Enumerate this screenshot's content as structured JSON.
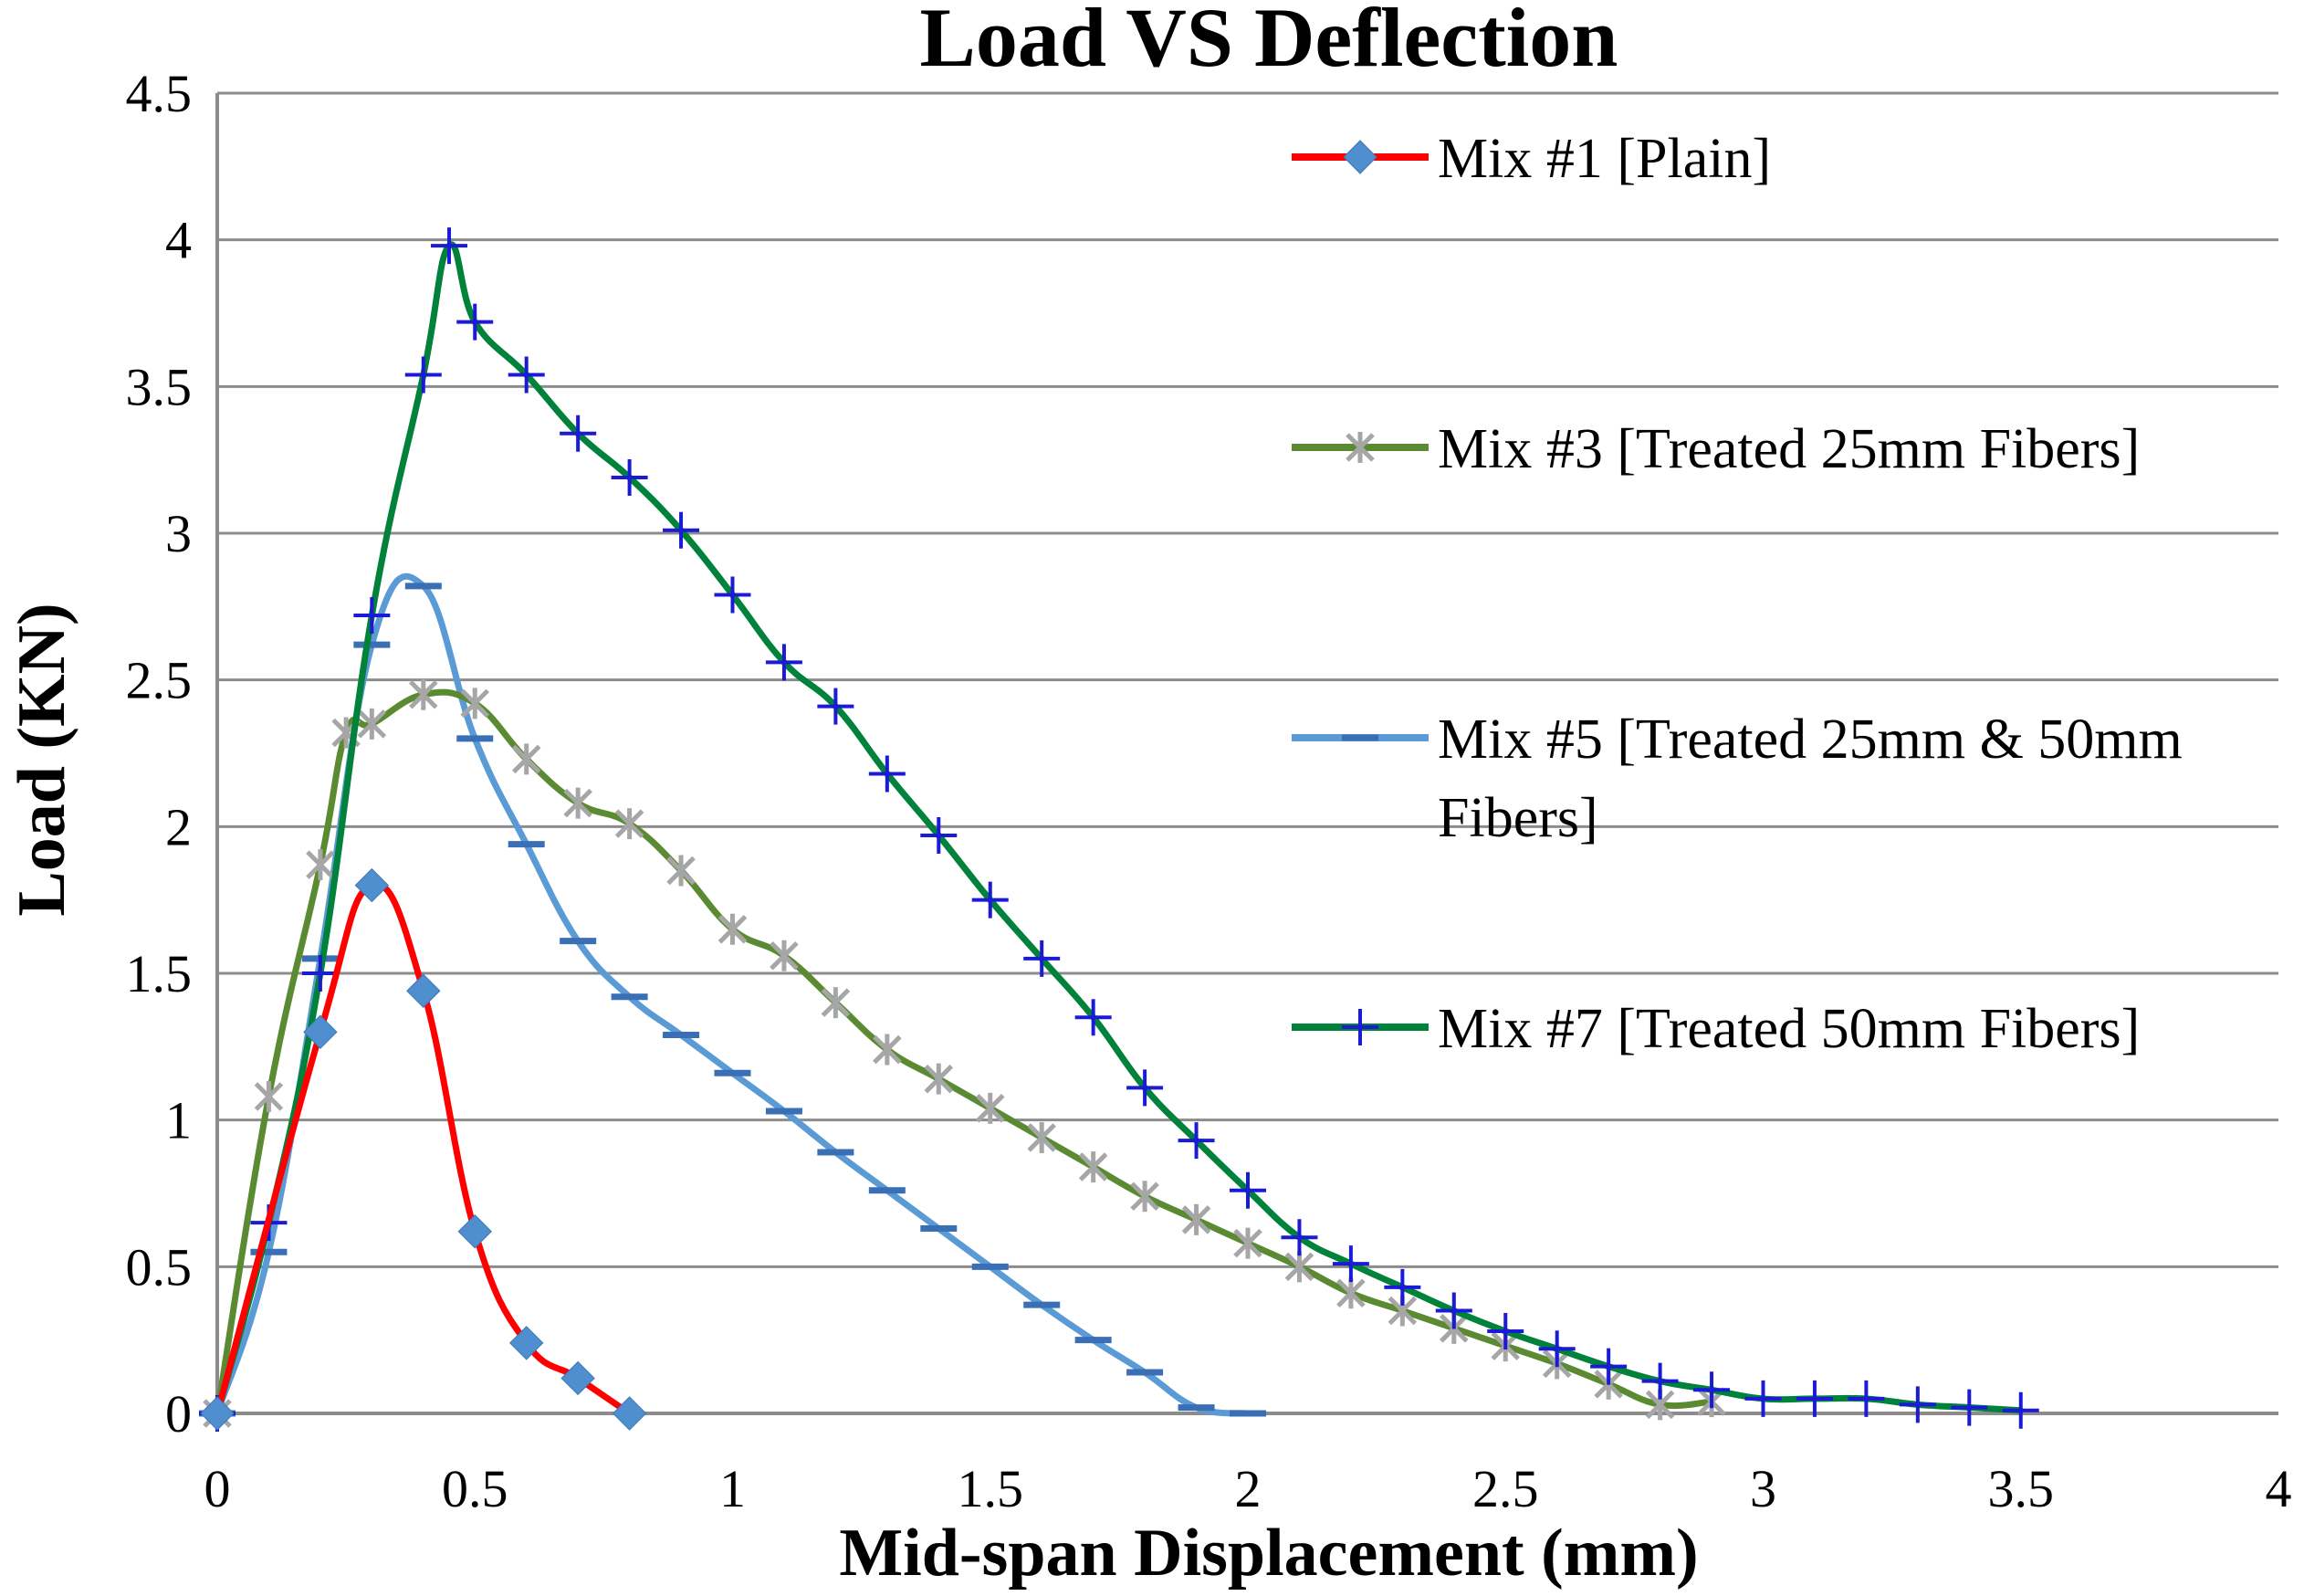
{
  "chart_data": {
    "type": "line",
    "title": "Load VS Deflection",
    "xlabel": "Mid-span Displacement (mm)",
    "ylabel": "Load (KN)",
    "xlim": [
      0,
      4
    ],
    "ylim": [
      0,
      4.5
    ],
    "grid": true,
    "xticks": [
      0,
      0.5,
      1,
      1.5,
      2,
      2.5,
      3,
      3.5,
      4
    ],
    "xtick_labels": [
      "0",
      "0.5",
      "1",
      "1.5",
      "2",
      "2.5",
      "3",
      "3.5",
      "4"
    ],
    "yticks": [
      0,
      0.5,
      1,
      1.5,
      2,
      2.5,
      3,
      3.5,
      4,
      4.5
    ],
    "ytick_labels": [
      "0",
      "0.5",
      "1",
      "1.5",
      "2",
      "2.5",
      "3",
      "3.5",
      "4",
      "4.5"
    ],
    "legend_position": "right",
    "series": [
      {
        "name": "Mix #1 [Plain]",
        "line_color": "#ff0000",
        "marker": "diamond",
        "marker_color": "#4f8fcf",
        "x": [
          0,
          0.2,
          0.3,
          0.4,
          0.5,
          0.6,
          0.7,
          0.8
        ],
        "y": [
          0,
          1.3,
          1.8,
          1.44,
          0.62,
          0.24,
          0.12,
          0
        ]
      },
      {
        "name": "Mix #3 [Treated 25mm Fibers]",
        "line_color": "#5a8b32",
        "marker": "star",
        "marker_color": "#a6a6a6",
        "x": [
          0,
          0.1,
          0.2,
          0.25,
          0.3,
          0.4,
          0.5,
          0.6,
          0.7,
          0.8,
          0.9,
          1.0,
          1.1,
          1.2,
          1.3,
          1.4,
          1.5,
          1.6,
          1.7,
          1.8,
          1.9,
          2.0,
          2.1,
          2.2,
          2.3,
          2.4,
          2.5,
          2.6,
          2.7,
          2.8,
          2.9
        ],
        "y": [
          0,
          1.08,
          1.87,
          2.32,
          2.35,
          2.45,
          2.42,
          2.23,
          2.08,
          2.01,
          1.85,
          1.65,
          1.56,
          1.4,
          1.24,
          1.14,
          1.04,
          0.94,
          0.84,
          0.74,
          0.66,
          0.58,
          0.5,
          0.41,
          0.35,
          0.29,
          0.23,
          0.17,
          0.1,
          0.03,
          0.04
        ]
      },
      {
        "name": "Mix #5 [Treated 25mm & 50mm Fibers]",
        "line_color": "#5b9bd5",
        "marker": "dash",
        "marker_color": "#3a6fb5",
        "x": [
          0,
          0.1,
          0.2,
          0.3,
          0.4,
          0.5,
          0.6,
          0.7,
          0.8,
          0.9,
          1.0,
          1.1,
          1.2,
          1.3,
          1.4,
          1.5,
          1.6,
          1.7,
          1.8,
          1.9,
          2.0
        ],
        "y": [
          0,
          0.55,
          1.55,
          2.62,
          2.82,
          2.3,
          1.94,
          1.61,
          1.42,
          1.29,
          1.16,
          1.03,
          0.89,
          0.76,
          0.63,
          0.5,
          0.37,
          0.25,
          0.14,
          0.02,
          0
        ]
      },
      {
        "name": "Mix #7 [Treated 50mm Fibers]",
        "line_color": "#00823b",
        "marker": "plus",
        "marker_color": "#1b1bd6",
        "x": [
          0,
          0.1,
          0.2,
          0.3,
          0.4,
          0.45,
          0.5,
          0.6,
          0.7,
          0.8,
          0.9,
          1.0,
          1.1,
          1.2,
          1.3,
          1.4,
          1.5,
          1.6,
          1.7,
          1.8,
          1.9,
          2.0,
          2.1,
          2.2,
          2.3,
          2.4,
          2.5,
          2.6,
          2.7,
          2.8,
          2.9,
          3.0,
          3.1,
          3.2,
          3.3,
          3.4,
          3.5
        ],
        "y": [
          0,
          0.65,
          1.5,
          2.72,
          3.54,
          3.98,
          3.72,
          3.54,
          3.34,
          3.19,
          3.01,
          2.79,
          2.56,
          2.41,
          2.18,
          1.97,
          1.75,
          1.55,
          1.35,
          1.11,
          0.93,
          0.76,
          0.6,
          0.51,
          0.43,
          0.35,
          0.28,
          0.22,
          0.16,
          0.11,
          0.08,
          0.05,
          0.05,
          0.05,
          0.03,
          0.02,
          0.01
        ]
      }
    ]
  }
}
